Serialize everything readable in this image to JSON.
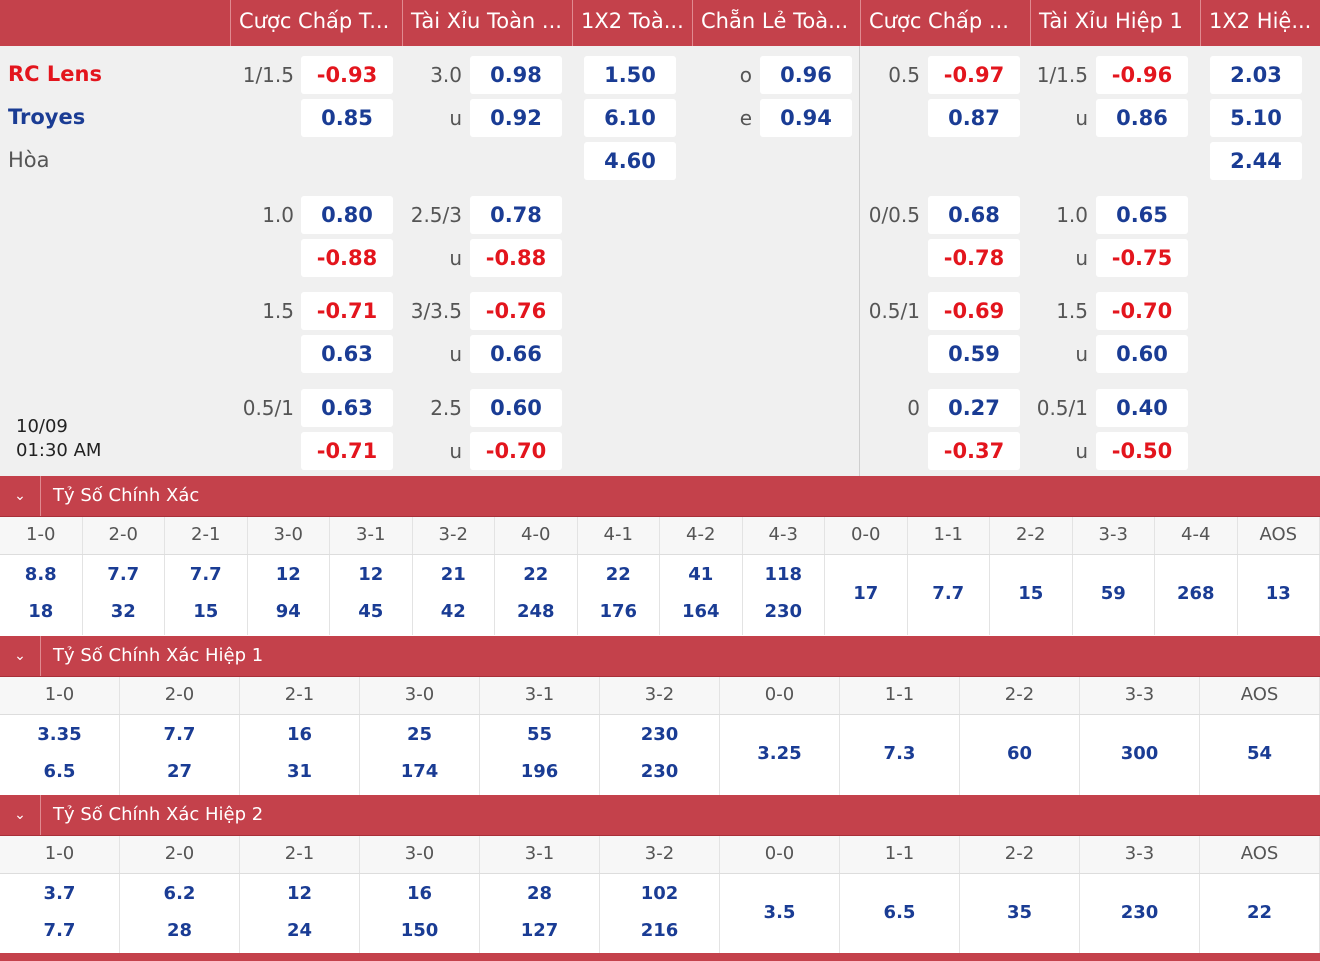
{
  "header": [
    "Cược Chấp T...",
    "Tài Xỉu Toàn ...",
    "1X2 Toà...",
    "Chẵn Lẻ Toà...",
    "Cược Chấp ...",
    "Tài Xỉu Hiệp 1",
    "1X2 Hiệ..."
  ],
  "match": {
    "home": "RC Lens",
    "away": "Troyes",
    "draw": "Hòa",
    "date": "10/09",
    "time": "01:30 AM"
  },
  "groups": [
    {
      "ah": {
        "line": "1/1.5",
        "h": "-0.93",
        "a": "0.85"
      },
      "ou": {
        "line": "3.0",
        "h": "0.98",
        "u": "u",
        "a": "0.92"
      },
      "x12": [
        "1.50",
        "6.10",
        "4.60"
      ],
      "oe": {
        "o": "o",
        "ov": "0.96",
        "e": "e",
        "ev": "0.94"
      },
      "ah1": {
        "line": "0.5",
        "h": "-0.97",
        "a": "0.87"
      },
      "ou1": {
        "line": "1/1.5",
        "h": "-0.96",
        "u": "u",
        "a": "0.86"
      },
      "x121": [
        "2.03",
        "5.10",
        "2.44"
      ]
    },
    {
      "ah": {
        "line": "1.0",
        "h": "0.80",
        "a": "-0.88"
      },
      "ou": {
        "line": "2.5/3",
        "h": "0.78",
        "u": "u",
        "a": "-0.88"
      },
      "ah1": {
        "line": "0/0.5",
        "h": "0.68",
        "a": "-0.78"
      },
      "ou1": {
        "line": "1.0",
        "h": "0.65",
        "u": "u",
        "a": "-0.75"
      }
    },
    {
      "ah": {
        "line": "1.5",
        "h": "-0.71",
        "a": "0.63"
      },
      "ou": {
        "line": "3/3.5",
        "h": "-0.76",
        "u": "u",
        "a": "0.66"
      },
      "ah1": {
        "line": "0.5/1",
        "h": "-0.69",
        "a": "0.59"
      },
      "ou1": {
        "line": "1.5",
        "h": "-0.70",
        "u": "u",
        "a": "0.60"
      }
    },
    {
      "ah": {
        "line": "0.5/1",
        "h": "0.63",
        "a": "-0.71"
      },
      "ou": {
        "line": "2.5",
        "h": "0.60",
        "u": "u",
        "a": "-0.70"
      },
      "ah1": {
        "line": "0",
        "h": "0.27",
        "a": "-0.37"
      },
      "ou1": {
        "line": "0.5/1",
        "h": "0.40",
        "u": "u",
        "a": "-0.50"
      }
    }
  ],
  "cs_full": {
    "title": "Tỷ Số Chính Xác",
    "cols": [
      {
        "label": "1-0",
        "top": "8.8",
        "bottom": "18"
      },
      {
        "label": "2-0",
        "top": "7.7",
        "bottom": "32"
      },
      {
        "label": "2-1",
        "top": "7.7",
        "bottom": "15"
      },
      {
        "label": "3-0",
        "top": "12",
        "bottom": "94"
      },
      {
        "label": "3-1",
        "top": "12",
        "bottom": "45"
      },
      {
        "label": "3-2",
        "top": "21",
        "bottom": "42"
      },
      {
        "label": "4-0",
        "top": "22",
        "bottom": "248"
      },
      {
        "label": "4-1",
        "top": "22",
        "bottom": "176"
      },
      {
        "label": "4-2",
        "top": "41",
        "bottom": "164"
      },
      {
        "label": "4-3",
        "top": "118",
        "bottom": "230"
      },
      {
        "label": "0-0",
        "single": "17"
      },
      {
        "label": "1-1",
        "single": "7.7"
      },
      {
        "label": "2-2",
        "single": "15"
      },
      {
        "label": "3-3",
        "single": "59"
      },
      {
        "label": "4-4",
        "single": "268"
      },
      {
        "label": "AOS",
        "single": "13"
      }
    ]
  },
  "cs_h1": {
    "title": "Tỷ Số Chính Xác Hiệp 1",
    "cols": [
      {
        "label": "1-0",
        "top": "3.35",
        "bottom": "6.5"
      },
      {
        "label": "2-0",
        "top": "7.7",
        "bottom": "27"
      },
      {
        "label": "2-1",
        "top": "16",
        "bottom": "31"
      },
      {
        "label": "3-0",
        "top": "25",
        "bottom": "174"
      },
      {
        "label": "3-1",
        "top": "55",
        "bottom": "196"
      },
      {
        "label": "3-2",
        "top": "230",
        "bottom": "230"
      },
      {
        "label": "0-0",
        "single": "3.25"
      },
      {
        "label": "1-1",
        "single": "7.3"
      },
      {
        "label": "2-2",
        "single": "60"
      },
      {
        "label": "3-3",
        "single": "300"
      },
      {
        "label": "AOS",
        "single": "54"
      }
    ]
  },
  "cs_h2": {
    "title": "Tỷ Số Chính Xác Hiệp 2",
    "cols": [
      {
        "label": "1-0",
        "top": "3.7",
        "bottom": "7.7"
      },
      {
        "label": "2-0",
        "top": "6.2",
        "bottom": "28"
      },
      {
        "label": "2-1",
        "top": "12",
        "bottom": "24"
      },
      {
        "label": "3-0",
        "top": "16",
        "bottom": "150"
      },
      {
        "label": "3-1",
        "top": "28",
        "bottom": "127"
      },
      {
        "label": "3-2",
        "top": "102",
        "bottom": "216"
      },
      {
        "label": "0-0",
        "single": "3.5"
      },
      {
        "label": "1-1",
        "single": "6.5"
      },
      {
        "label": "2-2",
        "single": "35"
      },
      {
        "label": "3-3",
        "single": "230"
      },
      {
        "label": "AOS",
        "single": "22"
      }
    ]
  }
}
